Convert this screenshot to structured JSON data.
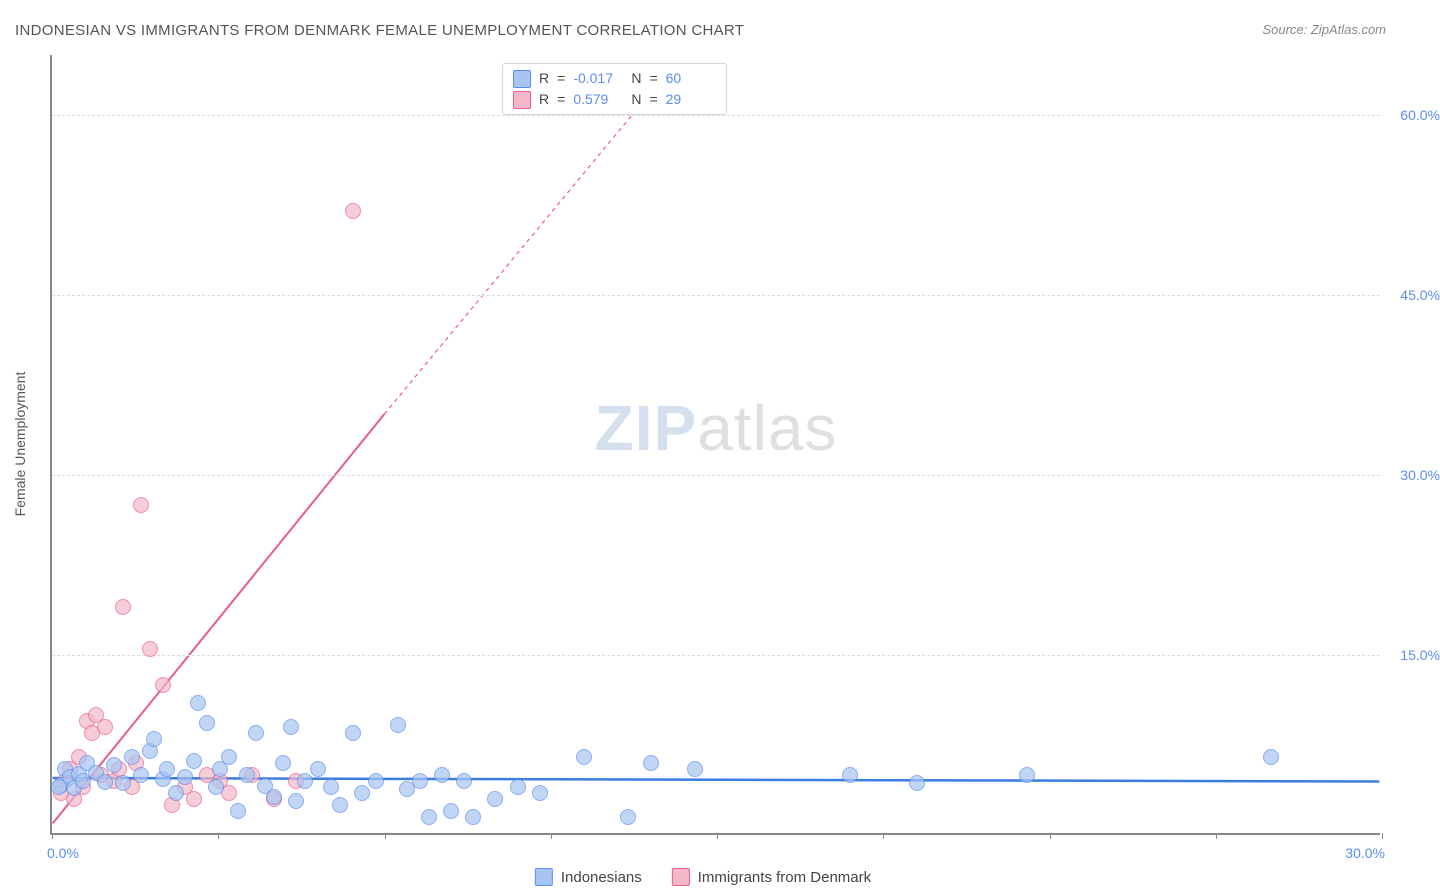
{
  "title": "INDONESIAN VS IMMIGRANTS FROM DENMARK FEMALE UNEMPLOYMENT CORRELATION CHART",
  "source": "Source: ZipAtlas.com",
  "y_axis_title": "Female Unemployment",
  "watermark_zip": "ZIP",
  "watermark_atlas": "atlas",
  "chart": {
    "type": "scatter",
    "xlim": [
      0,
      30
    ],
    "ylim": [
      0,
      65
    ],
    "x_ticks": [
      0,
      3.75,
      7.5,
      11.25,
      15,
      18.75,
      22.5,
      26.25,
      30
    ],
    "x_tick_labels": {
      "0": "0.0%",
      "30": "30.0%"
    },
    "y_gridlines": [
      15,
      30,
      45,
      60
    ],
    "y_tick_labels": {
      "15": "15.0%",
      "30": "30.0%",
      "45": "45.0%",
      "60": "60.0%"
    },
    "background_color": "#ffffff",
    "grid_color": "#dddddd",
    "axis_color": "#888888",
    "marker_radius": 8,
    "marker_opacity": 0.35,
    "series": [
      {
        "name": "Indonesians",
        "color_fill": "#a8c5f0",
        "color_stroke": "#5b8def",
        "R": "-0.017",
        "N": "60",
        "trend": {
          "x1": 0,
          "y1": 4.6,
          "x2": 30,
          "y2": 4.3,
          "color": "#3b7de0",
          "width": 2.5,
          "dash": "none"
        },
        "points": [
          [
            0.2,
            4.2
          ],
          [
            0.3,
            5.5
          ],
          [
            0.4,
            4.8
          ],
          [
            0.5,
            3.9
          ],
          [
            0.6,
            5.1
          ],
          [
            0.7,
            4.5
          ],
          [
            0.8,
            6.0
          ],
          [
            1.0,
            5.2
          ],
          [
            1.2,
            4.4
          ],
          [
            1.4,
            5.8
          ],
          [
            1.6,
            4.3
          ],
          [
            1.8,
            6.5
          ],
          [
            2.0,
            5.0
          ],
          [
            2.2,
            7.0
          ],
          [
            2.3,
            8.0
          ],
          [
            2.5,
            4.7
          ],
          [
            2.6,
            5.5
          ],
          [
            2.8,
            3.5
          ],
          [
            3.0,
            4.8
          ],
          [
            3.2,
            6.2
          ],
          [
            3.3,
            11.0
          ],
          [
            3.5,
            9.3
          ],
          [
            3.7,
            4.0
          ],
          [
            3.8,
            5.5
          ],
          [
            4.0,
            6.5
          ],
          [
            4.2,
            2.0
          ],
          [
            4.4,
            5.0
          ],
          [
            4.6,
            8.5
          ],
          [
            4.8,
            4.1
          ],
          [
            5.0,
            3.2
          ],
          [
            5.2,
            6.0
          ],
          [
            5.4,
            9.0
          ],
          [
            5.5,
            2.8
          ],
          [
            5.7,
            4.5
          ],
          [
            6.0,
            5.5
          ],
          [
            6.3,
            4.0
          ],
          [
            6.5,
            2.5
          ],
          [
            6.8,
            8.5
          ],
          [
            7.0,
            3.5
          ],
          [
            7.3,
            4.5
          ],
          [
            7.8,
            9.2
          ],
          [
            8.0,
            3.8
          ],
          [
            8.3,
            4.5
          ],
          [
            8.5,
            1.5
          ],
          [
            8.8,
            5.0
          ],
          [
            9.0,
            2.0
          ],
          [
            9.3,
            4.5
          ],
          [
            9.5,
            1.5
          ],
          [
            10.0,
            3.0
          ],
          [
            10.5,
            4.0
          ],
          [
            11.0,
            3.5
          ],
          [
            12.0,
            6.5
          ],
          [
            13.0,
            1.5
          ],
          [
            13.5,
            6.0
          ],
          [
            18.0,
            5.0
          ],
          [
            19.5,
            4.3
          ],
          [
            22.0,
            5.0
          ],
          [
            27.5,
            6.5
          ],
          [
            14.5,
            5.5
          ],
          [
            0.15,
            4.0
          ]
        ]
      },
      {
        "name": "Immigrants from Denmark",
        "color_fill": "#f5b8c8",
        "color_stroke": "#e85d8a",
        "R": "0.579",
        "N": "29",
        "trend": {
          "x1": 0,
          "y1": 0.8,
          "x2": 7.5,
          "y2": 35,
          "x2_dash": 14,
          "y2_dash": 64,
          "color": "#e85d8a",
          "width": 2,
          "dash": "4,4"
        },
        "points": [
          [
            0.2,
            3.5
          ],
          [
            0.3,
            4.5
          ],
          [
            0.4,
            5.5
          ],
          [
            0.5,
            3.0
          ],
          [
            0.6,
            6.5
          ],
          [
            0.7,
            4.0
          ],
          [
            0.8,
            9.5
          ],
          [
            0.9,
            8.5
          ],
          [
            1.0,
            10.0
          ],
          [
            1.1,
            5.0
          ],
          [
            1.2,
            9.0
          ],
          [
            1.4,
            4.5
          ],
          [
            1.5,
            5.5
          ],
          [
            1.6,
            19.0
          ],
          [
            1.8,
            4.0
          ],
          [
            1.9,
            6.0
          ],
          [
            2.0,
            27.5
          ],
          [
            2.2,
            15.5
          ],
          [
            2.5,
            12.5
          ],
          [
            2.7,
            2.5
          ],
          [
            3.0,
            4.0
          ],
          [
            3.2,
            3.0
          ],
          [
            3.5,
            5.0
          ],
          [
            3.8,
            4.5
          ],
          [
            4.0,
            3.5
          ],
          [
            4.5,
            5.0
          ],
          [
            5.0,
            3.0
          ],
          [
            5.5,
            4.5
          ],
          [
            6.8,
            52.0
          ]
        ]
      }
    ]
  },
  "stats_label_R": "R",
  "stats_label_N": "N",
  "stats_eq": "=",
  "legend_blue": "Indonesians",
  "legend_pink": "Immigrants from Denmark"
}
